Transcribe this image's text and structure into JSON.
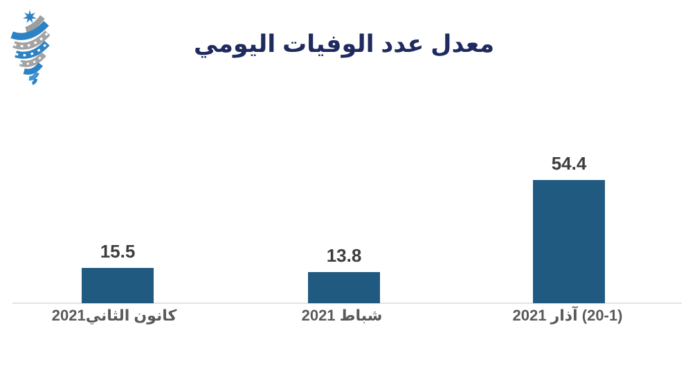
{
  "page": {
    "background": "#ffffff"
  },
  "logo": {
    "description": "jordan-seven-pointed-star-ribbon-logo",
    "blue": "#2d82c4",
    "light_blue": "#3f97d3",
    "gray": "#a3a3a3",
    "white_notch": "#ffffff"
  },
  "chart_data": {
    "type": "bar",
    "title": "معدل عدد الوفيات اليومي",
    "title_color": "#1f2a5e",
    "categories": [
      "كانون الثاني2021",
      "شباط 2021",
      "(20-1) آذار 2021"
    ],
    "values": [
      15.5,
      13.8,
      54.4
    ],
    "value_labels": [
      "15.5",
      "13.8",
      "54.4"
    ],
    "bar_color": "#215a80",
    "category_label_color": "#595959",
    "value_label_color": "#3d3d3d",
    "xlabel": "",
    "ylabel": "",
    "ylim": [
      0,
      60
    ],
    "grid": "off",
    "legend": "none",
    "baseline": "on",
    "baseline_color": "#e3e3e3"
  }
}
